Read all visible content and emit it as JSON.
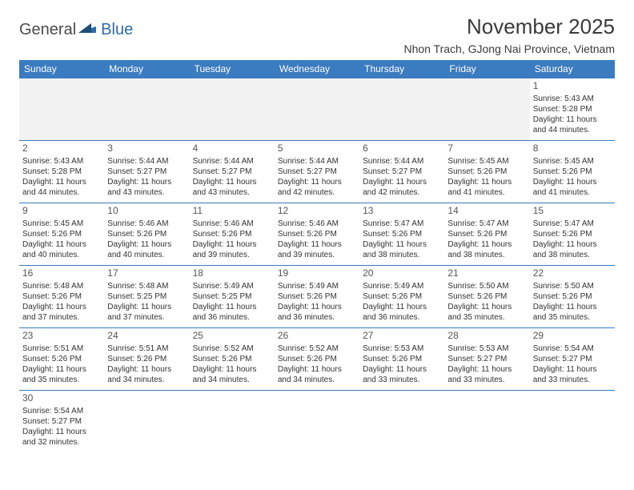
{
  "logo": {
    "part1": "General",
    "part2": "Blue"
  },
  "header": {
    "title": "November 2025",
    "location": "Nhon Trach, GJong Nai Province, Vietnam"
  },
  "colors": {
    "header_bg": "#3b7bbf",
    "header_text": "#ffffff",
    "border": "#3b7bbf",
    "empty_bg": "#f2f2f2",
    "logo_gray": "#4a4a4a",
    "logo_blue": "#2f6aa8"
  },
  "weekdays": [
    "Sunday",
    "Monday",
    "Tuesday",
    "Wednesday",
    "Thursday",
    "Friday",
    "Saturday"
  ],
  "weeks": [
    [
      {
        "empty": true
      },
      {
        "empty": true
      },
      {
        "empty": true
      },
      {
        "empty": true
      },
      {
        "empty": true
      },
      {
        "empty": true
      },
      {
        "day": "1",
        "sunrise": "Sunrise: 5:43 AM",
        "sunset": "Sunset: 5:28 PM",
        "dl1": "Daylight: 11 hours",
        "dl2": "and 44 minutes."
      }
    ],
    [
      {
        "day": "2",
        "sunrise": "Sunrise: 5:43 AM",
        "sunset": "Sunset: 5:28 PM",
        "dl1": "Daylight: 11 hours",
        "dl2": "and 44 minutes."
      },
      {
        "day": "3",
        "sunrise": "Sunrise: 5:44 AM",
        "sunset": "Sunset: 5:27 PM",
        "dl1": "Daylight: 11 hours",
        "dl2": "and 43 minutes."
      },
      {
        "day": "4",
        "sunrise": "Sunrise: 5:44 AM",
        "sunset": "Sunset: 5:27 PM",
        "dl1": "Daylight: 11 hours",
        "dl2": "and 43 minutes."
      },
      {
        "day": "5",
        "sunrise": "Sunrise: 5:44 AM",
        "sunset": "Sunset: 5:27 PM",
        "dl1": "Daylight: 11 hours",
        "dl2": "and 42 minutes."
      },
      {
        "day": "6",
        "sunrise": "Sunrise: 5:44 AM",
        "sunset": "Sunset: 5:27 PM",
        "dl1": "Daylight: 11 hours",
        "dl2": "and 42 minutes."
      },
      {
        "day": "7",
        "sunrise": "Sunrise: 5:45 AM",
        "sunset": "Sunset: 5:26 PM",
        "dl1": "Daylight: 11 hours",
        "dl2": "and 41 minutes."
      },
      {
        "day": "8",
        "sunrise": "Sunrise: 5:45 AM",
        "sunset": "Sunset: 5:26 PM",
        "dl1": "Daylight: 11 hours",
        "dl2": "and 41 minutes."
      }
    ],
    [
      {
        "day": "9",
        "sunrise": "Sunrise: 5:45 AM",
        "sunset": "Sunset: 5:26 PM",
        "dl1": "Daylight: 11 hours",
        "dl2": "and 40 minutes."
      },
      {
        "day": "10",
        "sunrise": "Sunrise: 5:46 AM",
        "sunset": "Sunset: 5:26 PM",
        "dl1": "Daylight: 11 hours",
        "dl2": "and 40 minutes."
      },
      {
        "day": "11",
        "sunrise": "Sunrise: 5:46 AM",
        "sunset": "Sunset: 5:26 PM",
        "dl1": "Daylight: 11 hours",
        "dl2": "and 39 minutes."
      },
      {
        "day": "12",
        "sunrise": "Sunrise: 5:46 AM",
        "sunset": "Sunset: 5:26 PM",
        "dl1": "Daylight: 11 hours",
        "dl2": "and 39 minutes."
      },
      {
        "day": "13",
        "sunrise": "Sunrise: 5:47 AM",
        "sunset": "Sunset: 5:26 PM",
        "dl1": "Daylight: 11 hours",
        "dl2": "and 38 minutes."
      },
      {
        "day": "14",
        "sunrise": "Sunrise: 5:47 AM",
        "sunset": "Sunset: 5:26 PM",
        "dl1": "Daylight: 11 hours",
        "dl2": "and 38 minutes."
      },
      {
        "day": "15",
        "sunrise": "Sunrise: 5:47 AM",
        "sunset": "Sunset: 5:26 PM",
        "dl1": "Daylight: 11 hours",
        "dl2": "and 38 minutes."
      }
    ],
    [
      {
        "day": "16",
        "sunrise": "Sunrise: 5:48 AM",
        "sunset": "Sunset: 5:26 PM",
        "dl1": "Daylight: 11 hours",
        "dl2": "and 37 minutes."
      },
      {
        "day": "17",
        "sunrise": "Sunrise: 5:48 AM",
        "sunset": "Sunset: 5:25 PM",
        "dl1": "Daylight: 11 hours",
        "dl2": "and 37 minutes."
      },
      {
        "day": "18",
        "sunrise": "Sunrise: 5:49 AM",
        "sunset": "Sunset: 5:25 PM",
        "dl1": "Daylight: 11 hours",
        "dl2": "and 36 minutes."
      },
      {
        "day": "19",
        "sunrise": "Sunrise: 5:49 AM",
        "sunset": "Sunset: 5:26 PM",
        "dl1": "Daylight: 11 hours",
        "dl2": "and 36 minutes."
      },
      {
        "day": "20",
        "sunrise": "Sunrise: 5:49 AM",
        "sunset": "Sunset: 5:26 PM",
        "dl1": "Daylight: 11 hours",
        "dl2": "and 36 minutes."
      },
      {
        "day": "21",
        "sunrise": "Sunrise: 5:50 AM",
        "sunset": "Sunset: 5:26 PM",
        "dl1": "Daylight: 11 hours",
        "dl2": "and 35 minutes."
      },
      {
        "day": "22",
        "sunrise": "Sunrise: 5:50 AM",
        "sunset": "Sunset: 5:26 PM",
        "dl1": "Daylight: 11 hours",
        "dl2": "and 35 minutes."
      }
    ],
    [
      {
        "day": "23",
        "sunrise": "Sunrise: 5:51 AM",
        "sunset": "Sunset: 5:26 PM",
        "dl1": "Daylight: 11 hours",
        "dl2": "and 35 minutes."
      },
      {
        "day": "24",
        "sunrise": "Sunrise: 5:51 AM",
        "sunset": "Sunset: 5:26 PM",
        "dl1": "Daylight: 11 hours",
        "dl2": "and 34 minutes."
      },
      {
        "day": "25",
        "sunrise": "Sunrise: 5:52 AM",
        "sunset": "Sunset: 5:26 PM",
        "dl1": "Daylight: 11 hours",
        "dl2": "and 34 minutes."
      },
      {
        "day": "26",
        "sunrise": "Sunrise: 5:52 AM",
        "sunset": "Sunset: 5:26 PM",
        "dl1": "Daylight: 11 hours",
        "dl2": "and 34 minutes."
      },
      {
        "day": "27",
        "sunrise": "Sunrise: 5:53 AM",
        "sunset": "Sunset: 5:26 PM",
        "dl1": "Daylight: 11 hours",
        "dl2": "and 33 minutes."
      },
      {
        "day": "28",
        "sunrise": "Sunrise: 5:53 AM",
        "sunset": "Sunset: 5:27 PM",
        "dl1": "Daylight: 11 hours",
        "dl2": "and 33 minutes."
      },
      {
        "day": "29",
        "sunrise": "Sunrise: 5:54 AM",
        "sunset": "Sunset: 5:27 PM",
        "dl1": "Daylight: 11 hours",
        "dl2": "and 33 minutes."
      }
    ],
    [
      {
        "day": "30",
        "sunrise": "Sunrise: 5:54 AM",
        "sunset": "Sunset: 5:27 PM",
        "dl1": "Daylight: 11 hours",
        "dl2": "and 32 minutes."
      },
      {
        "blank": true
      },
      {
        "blank": true
      },
      {
        "blank": true
      },
      {
        "blank": true
      },
      {
        "blank": true
      },
      {
        "blank": true
      }
    ]
  ]
}
